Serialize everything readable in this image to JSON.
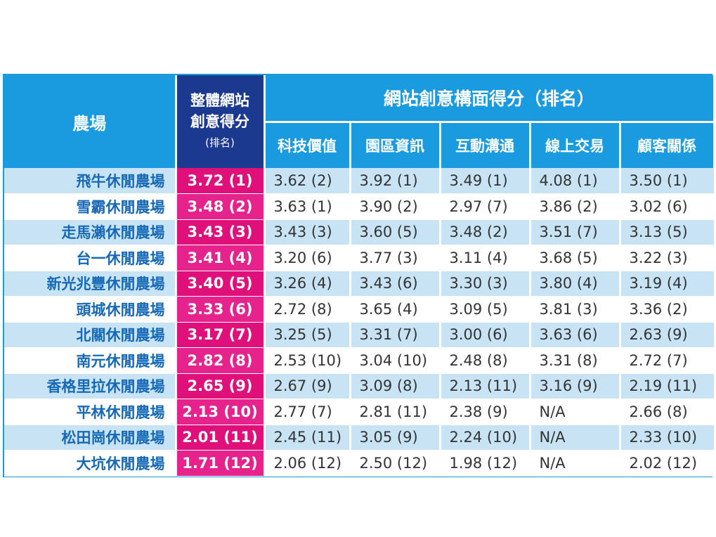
{
  "header": {
    "farm": "農場",
    "total_line1": "整體網站",
    "total_line2": "創意得分",
    "total_rank_note": "(排名)",
    "dimension_group": "網站創意構面得分（排名）",
    "dimensions": [
      "科技價值",
      "園區資訊",
      "互動溝通",
      "線上交易",
      "顧客關係"
    ]
  },
  "rows": [
    {
      "name": "飛牛休閒農場",
      "total": "3.72 (1)",
      "vals": [
        "3.62 (2)",
        "3.92 (1)",
        "3.49 (1)",
        "4.08 (1)",
        "3.50 (1)"
      ]
    },
    {
      "name": "雪霸休閒農場",
      "total": "3.48 (2)",
      "vals": [
        "3.63 (1)",
        "3.90 (2)",
        "2.97 (7)",
        "3.86 (2)",
        "3.02 (6)"
      ]
    },
    {
      "name": "走馬瀨休閒農場",
      "total": "3.43 (3)",
      "vals": [
        "3.43 (3)",
        "3.60 (5)",
        "3.48 (2)",
        "3.51 (7)",
        "3.13 (5)"
      ]
    },
    {
      "name": "台一休閒農場",
      "total": "3.41 (4)",
      "vals": [
        "3.20 (6)",
        "3.77 (3)",
        "3.11 (4)",
        "3.68 (5)",
        "3.22 (3)"
      ]
    },
    {
      "name": "新光兆豐休閒農場",
      "total": "3.40 (5)",
      "vals": [
        "3.26 (4)",
        "3.43 (6)",
        "3.30 (3)",
        "3.80 (4)",
        "3.19 (4)"
      ]
    },
    {
      "name": "頭城休閒農場",
      "total": "3.33 (6)",
      "vals": [
        "2.72 (8)",
        "3.65 (4)",
        "3.09 (5)",
        "3.81 (3)",
        "3.36 (2)"
      ]
    },
    {
      "name": "北關休閒農場",
      "total": "3.17 (7)",
      "vals": [
        "3.25 (5)",
        "3.31 (7)",
        "3.00 (6)",
        "3.63 (6)",
        "2.63 (9)"
      ]
    },
    {
      "name": "南元休閒農場",
      "total": "2.82 (8)",
      "vals": [
        "2.53 (10)",
        "3.04 (10)",
        "2.48 (8)",
        "3.31 (8)",
        "2.72 (7)"
      ]
    },
    {
      "name": "香格里拉休閒農場",
      "total": "2.65 (9)",
      "vals": [
        "2.67 (9)",
        "3.09 (8)",
        "2.13 (11)",
        "3.16 (9)",
        "2.19 (11)"
      ]
    },
    {
      "name": "平林休閒農場",
      "total": "2.13 (10)",
      "vals": [
        "2.77 (7)",
        "2.81 (11)",
        "2.38 (9)",
        "N/A",
        "2.66 (8)"
      ]
    },
    {
      "name": "松田崗休閒農場",
      "total": "2.01 (11)",
      "vals": [
        "2.45 (11)",
        "3.05 (9)",
        "2.24 (10)",
        "N/A",
        "2.33 (10)"
      ]
    },
    {
      "name": "大坑休閒農場",
      "total": "1.71 (12)",
      "vals": [
        "2.06 (12)",
        "2.50 (12)",
        "1.98 (12)",
        "N/A",
        "2.02 (12)"
      ]
    }
  ],
  "colors": {
    "header_blue": "#1a9be0",
    "total_header_navy": "#1b3a8f",
    "total_magenta": "#e0107b",
    "row_stripe": "#c8e4f4",
    "farm_name_blue": "#1769b5"
  }
}
